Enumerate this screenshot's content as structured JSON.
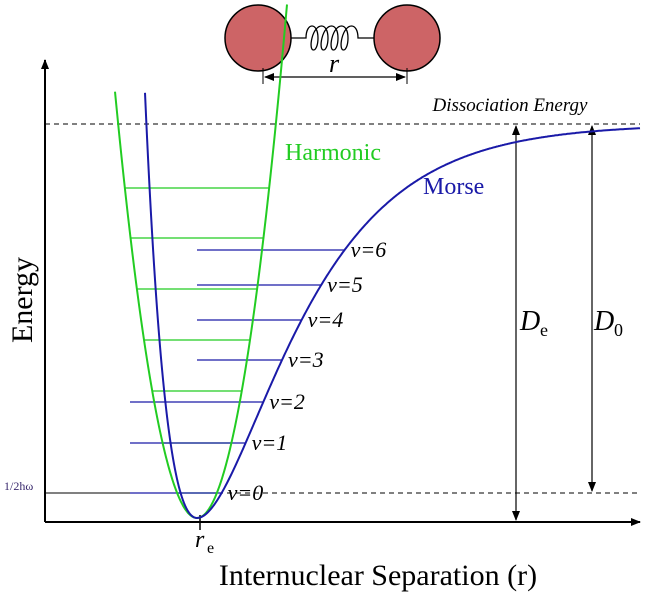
{
  "axes": {
    "y_label": "Energy",
    "x_label": "Internuclear Separation (r)"
  },
  "molecule": {
    "bond_label": "r"
  },
  "dissociation_label": "Dissociation Energy",
  "curves": {
    "harmonic": "Harmonic",
    "morse": "Morse"
  },
  "levels": [
    "v=0",
    "v=1",
    "v=2",
    "v=3",
    "v=4",
    "v=5",
    "v=6"
  ],
  "markers": {
    "re": "r",
    "re_sub": "e",
    "De": "D",
    "De_sub": "e",
    "D0": "D",
    "D0_sub": "0",
    "zero_point": "1/2hω"
  }
}
